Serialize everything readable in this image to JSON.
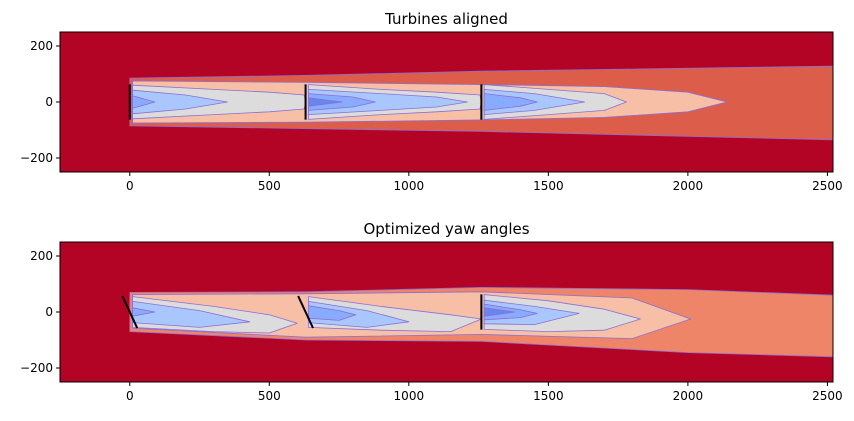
{
  "colors": {
    "background": "#b40426",
    "level1": "#dc5d4a",
    "level1b": "#ee8468",
    "level2": "#f6bfa6",
    "level3": "#dddcdc",
    "level4": "#aac7fd",
    "level5": "#88abfd",
    "level6": "#6687ed",
    "contour_line": "#8a6fd6",
    "turbine": "#000000",
    "axis": "#000000"
  },
  "chart_data": [
    {
      "type": "heatmap",
      "title": "Turbines aligned",
      "xlabel": "",
      "ylabel": "",
      "xlim": [
        -250,
        2520
      ],
      "ylim": [
        -250,
        250
      ],
      "xticks": [
        0,
        500,
        1000,
        1500,
        2000,
        2500
      ],
      "yticks": [
        -200,
        0,
        200
      ],
      "xtick_labels": [
        "0",
        "500",
        "1000",
        "1500",
        "2000",
        "2500"
      ],
      "ytick_labels": [
        "−200",
        "0",
        "200"
      ],
      "turbines": [
        {
          "x": 0,
          "y": 0,
          "yaw_deg": 0,
          "diameter": 126
        },
        {
          "x": 630,
          "y": 0,
          "yaw_deg": 0,
          "diameter": 126
        },
        {
          "x": 1260,
          "y": 0,
          "yaw_deg": 0,
          "diameter": 126
        }
      ],
      "wake_regions": [
        {
          "level": "level1",
          "x0": 0,
          "x1": 2520,
          "top": [
            [
              0,
              85
            ],
            [
              630,
              95
            ],
            [
              1260,
              110
            ],
            [
              2520,
              128
            ]
          ],
          "bottom": [
            [
              0,
              -85
            ],
            [
              630,
              -95
            ],
            [
              1260,
              -105
            ],
            [
              2520,
              -135
            ]
          ]
        },
        {
          "level": "level2",
          "x0": 10,
          "x1": 2140,
          "top": [
            [
              10,
              75
            ],
            [
              630,
              70
            ],
            [
              1260,
              62
            ],
            [
              1700,
              55
            ],
            [
              2000,
              35
            ],
            [
              2140,
              0
            ]
          ],
          "bottom": [
            [
              10,
              -75
            ],
            [
              630,
              -72
            ],
            [
              1260,
              -64
            ],
            [
              1700,
              -55
            ],
            [
              2000,
              -35
            ],
            [
              2140,
              0
            ]
          ]
        },
        {
          "level": "level3",
          "x0": 10,
          "x1": 630,
          "top": [
            [
              10,
              60
            ],
            [
              300,
              45
            ],
            [
              500,
              35
            ],
            [
              625,
              25
            ],
            [
              630,
              0
            ]
          ],
          "bottom": [
            [
              10,
              -60
            ],
            [
              300,
              -45
            ],
            [
              500,
              -35
            ],
            [
              625,
              -25
            ],
            [
              630,
              0
            ]
          ]
        },
        {
          "level": "level3",
          "x0": 640,
          "x1": 1260,
          "top": [
            [
              640,
              62
            ],
            [
              900,
              45
            ],
            [
              1100,
              35
            ],
            [
              1255,
              25
            ],
            [
              1260,
              0
            ]
          ],
          "bottom": [
            [
              640,
              -62
            ],
            [
              900,
              -45
            ],
            [
              1100,
              -35
            ],
            [
              1255,
              -25
            ],
            [
              1260,
              0
            ]
          ]
        },
        {
          "level": "level3",
          "x0": 1270,
          "x1": 1780,
          "top": [
            [
              1270,
              62
            ],
            [
              1500,
              45
            ],
            [
              1700,
              30
            ],
            [
              1780,
              0
            ]
          ],
          "bottom": [
            [
              1270,
              -62
            ],
            [
              1500,
              -45
            ],
            [
              1700,
              -30
            ],
            [
              1780,
              0
            ]
          ]
        },
        {
          "level": "level4",
          "x0": 10,
          "x1": 350,
          "top": [
            [
              10,
              42
            ],
            [
              200,
              25
            ],
            [
              350,
              0
            ]
          ],
          "bottom": [
            [
              10,
              -42
            ],
            [
              200,
              -25
            ],
            [
              350,
              0
            ]
          ]
        },
        {
          "level": "level4",
          "x0": 640,
          "x1": 1210,
          "top": [
            [
              640,
              45
            ],
            [
              900,
              30
            ],
            [
              1100,
              18
            ],
            [
              1210,
              0
            ]
          ],
          "bottom": [
            [
              640,
              -45
            ],
            [
              900,
              -30
            ],
            [
              1100,
              -18
            ],
            [
              1210,
              0
            ]
          ]
        },
        {
          "level": "level4",
          "x0": 1270,
          "x1": 1630,
          "top": [
            [
              1270,
              45
            ],
            [
              1450,
              30
            ],
            [
              1630,
              0
            ]
          ],
          "bottom": [
            [
              1270,
              -45
            ],
            [
              1450,
              -30
            ],
            [
              1630,
              0
            ]
          ]
        },
        {
          "level": "level5",
          "x0": 10,
          "x1": 90,
          "top": [
            [
              10,
              22
            ],
            [
              90,
              0
            ]
          ],
          "bottom": [
            [
              10,
              -22
            ],
            [
              90,
              0
            ]
          ]
        },
        {
          "level": "level5",
          "x0": 640,
          "x1": 880,
          "top": [
            [
              640,
              30
            ],
            [
              800,
              18
            ],
            [
              880,
              0
            ]
          ],
          "bottom": [
            [
              640,
              -30
            ],
            [
              800,
              -18
            ],
            [
              880,
              0
            ]
          ]
        },
        {
          "level": "level5",
          "x0": 1270,
          "x1": 1460,
          "top": [
            [
              1270,
              30
            ],
            [
              1400,
              15
            ],
            [
              1460,
              0
            ]
          ],
          "bottom": [
            [
              1270,
              -30
            ],
            [
              1400,
              -15
            ],
            [
              1460,
              0
            ]
          ]
        },
        {
          "level": "level6",
          "x0": 640,
          "x1": 760,
          "top": [
            [
              640,
              15
            ],
            [
              760,
              0
            ]
          ],
          "bottom": [
            [
              640,
              -15
            ],
            [
              760,
              0
            ]
          ]
        }
      ]
    },
    {
      "type": "heatmap",
      "title": "Optimized yaw angles",
      "xlabel": "",
      "ylabel": "",
      "xlim": [
        -250,
        2520
      ],
      "ylim": [
        -250,
        250
      ],
      "xticks": [
        0,
        500,
        1000,
        1500,
        2000,
        2500
      ],
      "yticks": [
        -200,
        0,
        200
      ],
      "xtick_labels": [
        "0",
        "500",
        "1000",
        "1500",
        "2000",
        "2500"
      ],
      "ytick_labels": [
        "−200",
        "0",
        "200"
      ],
      "turbines": [
        {
          "x": 0,
          "y": 0,
          "yaw_deg": 25,
          "diameter": 126
        },
        {
          "x": 630,
          "y": 0,
          "yaw_deg": 25,
          "diameter": 126
        },
        {
          "x": 1260,
          "y": 0,
          "yaw_deg": 0,
          "diameter": 126
        }
      ],
      "wake_regions": [
        {
          "level": "level1b",
          "x0": 0,
          "x1": 2520,
          "top": [
            [
              0,
              70
            ],
            [
              630,
              72
            ],
            [
              1260,
              88
            ],
            [
              2000,
              80
            ],
            [
              2520,
              60
            ]
          ],
          "bottom": [
            [
              0,
              -70
            ],
            [
              630,
              -100
            ],
            [
              1260,
              -105
            ],
            [
              2000,
              -145
            ],
            [
              2520,
              -160
            ]
          ]
        },
        {
          "level": "level2",
          "x0": 10,
          "x1": 2010,
          "top": [
            [
              10,
              62
            ],
            [
              630,
              65
            ],
            [
              1260,
              72
            ],
            [
              1800,
              50
            ],
            [
              2010,
              -25
            ]
          ],
          "bottom": [
            [
              10,
              -58
            ],
            [
              630,
              -90
            ],
            [
              1260,
              -80
            ],
            [
              1800,
              -95
            ],
            [
              2010,
              -25
            ]
          ]
        },
        {
          "level": "level3",
          "x0": 10,
          "x1": 600,
          "top": [
            [
              10,
              55
            ],
            [
              300,
              20
            ],
            [
              500,
              -10
            ],
            [
              600,
              -40
            ]
          ],
          "bottom": [
            [
              10,
              -55
            ],
            [
              300,
              -70
            ],
            [
              500,
              -75
            ],
            [
              600,
              -40
            ]
          ]
        },
        {
          "level": "level3",
          "x0": 640,
          "x1": 1260,
          "top": [
            [
              640,
              55
            ],
            [
              900,
              20
            ],
            [
              1150,
              -10
            ],
            [
              1260,
              -25
            ]
          ],
          "bottom": [
            [
              640,
              -55
            ],
            [
              900,
              -65
            ],
            [
              1150,
              -70
            ],
            [
              1260,
              -25
            ]
          ]
        },
        {
          "level": "level3",
          "x0": 1270,
          "x1": 1830,
          "top": [
            [
              1270,
              62
            ],
            [
              1500,
              40
            ],
            [
              1700,
              10
            ],
            [
              1830,
              -25
            ]
          ],
          "bottom": [
            [
              1270,
              -62
            ],
            [
              1500,
              -70
            ],
            [
              1700,
              -65
            ],
            [
              1830,
              -25
            ]
          ]
        },
        {
          "level": "level4",
          "x0": 10,
          "x1": 430,
          "top": [
            [
              10,
              38
            ],
            [
              250,
              5
            ],
            [
              430,
              -35
            ]
          ],
          "bottom": [
            [
              10,
              -38
            ],
            [
              250,
              -55
            ],
            [
              430,
              -35
            ]
          ]
        },
        {
          "level": "level4",
          "x0": 640,
          "x1": 1000,
          "top": [
            [
              640,
              38
            ],
            [
              850,
              5
            ],
            [
              1000,
              -35
            ]
          ],
          "bottom": [
            [
              640,
              -38
            ],
            [
              850,
              -55
            ],
            [
              1000,
              -35
            ]
          ]
        },
        {
          "level": "level4",
          "x0": 1270,
          "x1": 1610,
          "top": [
            [
              1270,
              42
            ],
            [
              1450,
              20
            ],
            [
              1610,
              -5
            ]
          ],
          "bottom": [
            [
              1270,
              -42
            ],
            [
              1450,
              -45
            ],
            [
              1610,
              -5
            ]
          ]
        },
        {
          "level": "level5",
          "x0": 10,
          "x1": 90,
          "top": [
            [
              10,
              15
            ],
            [
              90,
              0
            ]
          ],
          "bottom": [
            [
              10,
              -15
            ],
            [
              90,
              0
            ]
          ]
        },
        {
          "level": "level5",
          "x0": 640,
          "x1": 810,
          "top": [
            [
              640,
              22
            ],
            [
              750,
              5
            ],
            [
              810,
              -10
            ]
          ],
          "bottom": [
            [
              640,
              -22
            ],
            [
              750,
              -30
            ],
            [
              810,
              -10
            ]
          ]
        },
        {
          "level": "level5",
          "x0": 1270,
          "x1": 1460,
          "top": [
            [
              1270,
              28
            ],
            [
              1400,
              8
            ],
            [
              1460,
              -5
            ]
          ],
          "bottom": [
            [
              1270,
              -28
            ],
            [
              1400,
              -20
            ],
            [
              1460,
              -5
            ]
          ]
        },
        {
          "level": "level6",
          "x0": 1270,
          "x1": 1380,
          "top": [
            [
              1270,
              15
            ],
            [
              1380,
              0
            ]
          ],
          "bottom": [
            [
              1270,
              -15
            ],
            [
              1380,
              0
            ]
          ]
        }
      ]
    }
  ]
}
